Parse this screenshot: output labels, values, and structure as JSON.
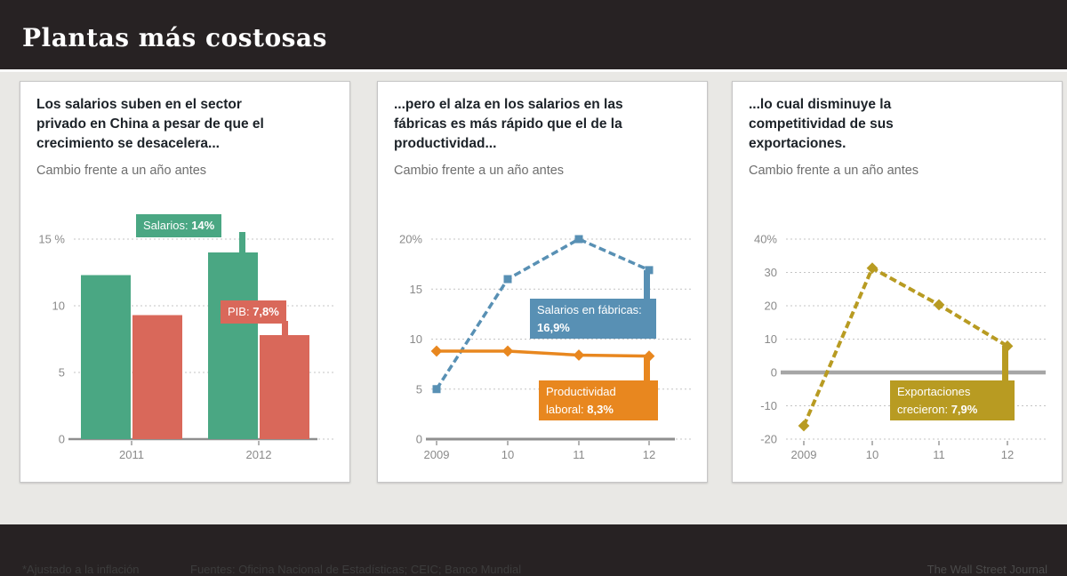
{
  "title": "Plantas más costosas",
  "panels": [
    {
      "headline": "Los salarios suben en el sector privado en China a pesar de que el crecimiento se desacelera...",
      "subtitle": "Cambio frente a un año antes",
      "callouts": [
        {
          "label": "Salarios:",
          "value": "14%"
        },
        {
          "label": "PIB:",
          "value": "7,8%"
        }
      ]
    },
    {
      "headline": "...pero el alza en los salarios en las fábricas es más rápido que el de la productividad...",
      "subtitle": "Cambio frente a un año antes",
      "callouts": [
        {
          "label": "Salarios en fábricas:",
          "value": "16,9%"
        },
        {
          "label": "Productividad laboral:",
          "value": "8,3%"
        }
      ]
    },
    {
      "headline": "...lo cual disminuye la competitividad de sus exportaciones.",
      "subtitle": "Cambio frente a un año antes",
      "callouts": [
        {
          "label": "Exportaciones crecieron:",
          "value": "7,9%"
        }
      ]
    }
  ],
  "footer": {
    "note": "*Ajustado a la inflación",
    "sources": "Fuentes: Oficina Nacional de Estadísticas; CEIC; Banco Mundial",
    "credit": "The Wall Street Journal"
  },
  "colors": {
    "green": "#4aa783",
    "red": "#d9685a",
    "blue": "#5890b4",
    "orange": "#e8871f",
    "gold": "#b89b22",
    "header_bg": "#272223",
    "content_bg": "#e9e8e5"
  },
  "chart_data": [
    {
      "type": "bar",
      "title": "Los salarios suben en el sector privado en China a pesar de que el crecimiento se desacelera...",
      "categories": [
        "2011",
        "2012"
      ],
      "series": [
        {
          "name": "Salarios",
          "color": "#4aa783",
          "values": [
            12.3,
            14
          ]
        },
        {
          "name": "PIB",
          "color": "#d9685a",
          "values": [
            9.3,
            7.8
          ]
        }
      ],
      "ylim": [
        0,
        15
      ],
      "yticks": [
        0,
        5,
        10,
        15
      ],
      "ytick_labels": [
        "0",
        "5",
        "10",
        "15 %"
      ],
      "grid": true,
      "unit": "%"
    },
    {
      "type": "line",
      "title": "...pero el alza en los salarios en las fábricas es más rápido que el de la productividad...",
      "x": [
        "2009",
        "10",
        "11",
        "12"
      ],
      "series": [
        {
          "name": "Salarios en fábricas",
          "color": "#5890b4",
          "values": [
            5,
            16,
            20,
            16.9
          ],
          "dashed": true,
          "marker": "square"
        },
        {
          "name": "Productividad laboral",
          "color": "#e8871f",
          "values": [
            8.8,
            8.8,
            8.4,
            8.3
          ],
          "dashed": false,
          "marker": "diamond"
        }
      ],
      "ylim": [
        0,
        20
      ],
      "yticks": [
        0,
        5,
        10,
        15,
        20
      ],
      "ytick_labels": [
        "0",
        "5",
        "10",
        "15",
        "20%"
      ],
      "grid": true,
      "unit": "%"
    },
    {
      "type": "line",
      "title": "...lo cual disminuye la competitividad de sus exportaciones.",
      "x": [
        "2009",
        "10",
        "11",
        "12"
      ],
      "series": [
        {
          "name": "Exportaciones",
          "color": "#b89b22",
          "values": [
            -16,
            31.3,
            20.3,
            7.9
          ],
          "dashed": true,
          "marker": "diamond"
        }
      ],
      "ylim": [
        -20,
        40
      ],
      "yticks": [
        -20,
        -10,
        0,
        10,
        20,
        30,
        40
      ],
      "ytick_labels": [
        "-20",
        "-10",
        "0",
        "10",
        "20",
        "30",
        "40%"
      ],
      "zero_line": true,
      "grid": true,
      "unit": "%"
    }
  ]
}
